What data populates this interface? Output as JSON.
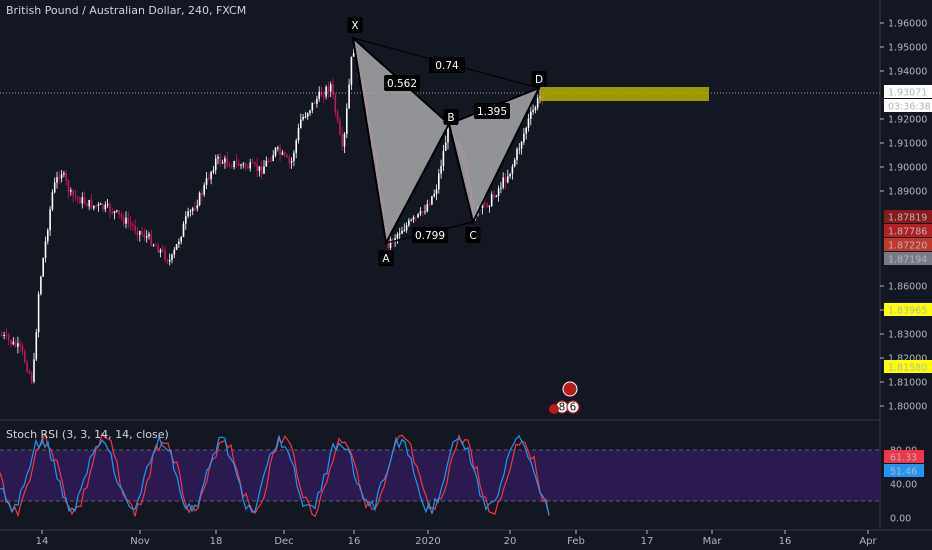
{
  "chart": {
    "title": "British Pound / Australian Dollar, 240, FXCM",
    "y_ticks": [
      "1.96000",
      "1.95000",
      "1.94000",
      "1.92000",
      "1.91000",
      "1.90000",
      "1.89000",
      "1.86000",
      "1.85000",
      "1.83000",
      "1.82000",
      "1.81000",
      "1.80000"
    ],
    "x_ticks": [
      "14",
      "Nov",
      "18",
      "Dec",
      "16",
      "2020",
      "20",
      "Feb",
      "17",
      "Mar",
      "16",
      "Apr"
    ],
    "price_labels": [
      {
        "text": "1.93071",
        "bg": "#ffffff",
        "fg": "#131722"
      },
      {
        "text": "03:36:38",
        "bg": "#ffffff",
        "fg": "#131722"
      },
      {
        "text": "1.87819",
        "bg": "#8b1a1a",
        "fg": "#ffffff"
      },
      {
        "text": "1.87786",
        "bg": "#b22222",
        "fg": "#ffffff"
      },
      {
        "text": "1.87220",
        "bg": "#c0392b",
        "fg": "#ffffff"
      },
      {
        "text": "1.87194",
        "bg": "#787b86",
        "fg": "#ffffff"
      },
      {
        "text": "1.83965",
        "bg": "#ffff00",
        "fg": "#131722"
      },
      {
        "text": "1.81580",
        "bg": "#ffff00",
        "fg": "#131722"
      }
    ],
    "pattern_points": [
      "X",
      "A",
      "B",
      "C",
      "D"
    ],
    "ratios": [
      "0.562",
      "0.74",
      "1.395",
      "0.799"
    ],
    "event_badges": [
      "8",
      "6"
    ]
  },
  "rsi": {
    "title": "Stoch RSI (3, 3, 14, 14, close)",
    "y_ticks": [
      "80.00",
      "40.00",
      "0.00"
    ],
    "value_k": "61.33",
    "value_d": "51.46",
    "color_k": "#f23645",
    "color_d": "#2196f3",
    "band_color": "#2b1a4f"
  },
  "colors": {
    "background": "#131722",
    "candle_up": "#ffffff",
    "candle_down": "#c2185b",
    "pattern_fill": "#a9a9ab",
    "target_zone": "#b5b000"
  }
}
